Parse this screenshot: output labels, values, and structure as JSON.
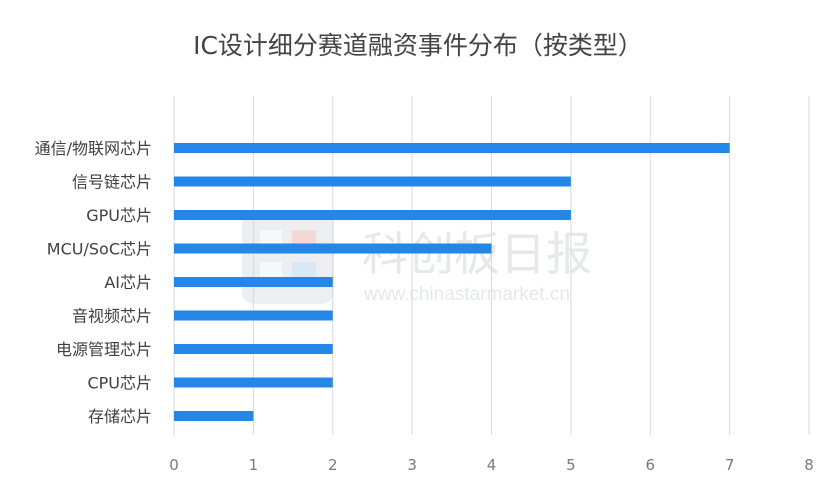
{
  "chart_data": {
    "type": "bar",
    "orientation": "horizontal",
    "title": "IC设计细分赛道融资事件分布（按类型）",
    "categories": [
      "通信/物联网芯片",
      "信号链芯片",
      "GPU芯片",
      "MCU/SoC芯片",
      "AI芯片",
      "音视频芯片",
      "电源管理芯片",
      "CPU芯片",
      "存储芯片"
    ],
    "values": [
      7,
      5,
      5,
      4,
      2,
      2,
      2,
      2,
      1
    ],
    "xlim": [
      0,
      8
    ],
    "xticks": [
      "0",
      "1",
      "2",
      "3",
      "4",
      "5",
      "6",
      "7",
      "8"
    ],
    "grid": "vertical",
    "bar_color": "#2487e8"
  },
  "watermark": {
    "brand": "科创板日报",
    "url": "www.chinastarmarket.cn"
  }
}
